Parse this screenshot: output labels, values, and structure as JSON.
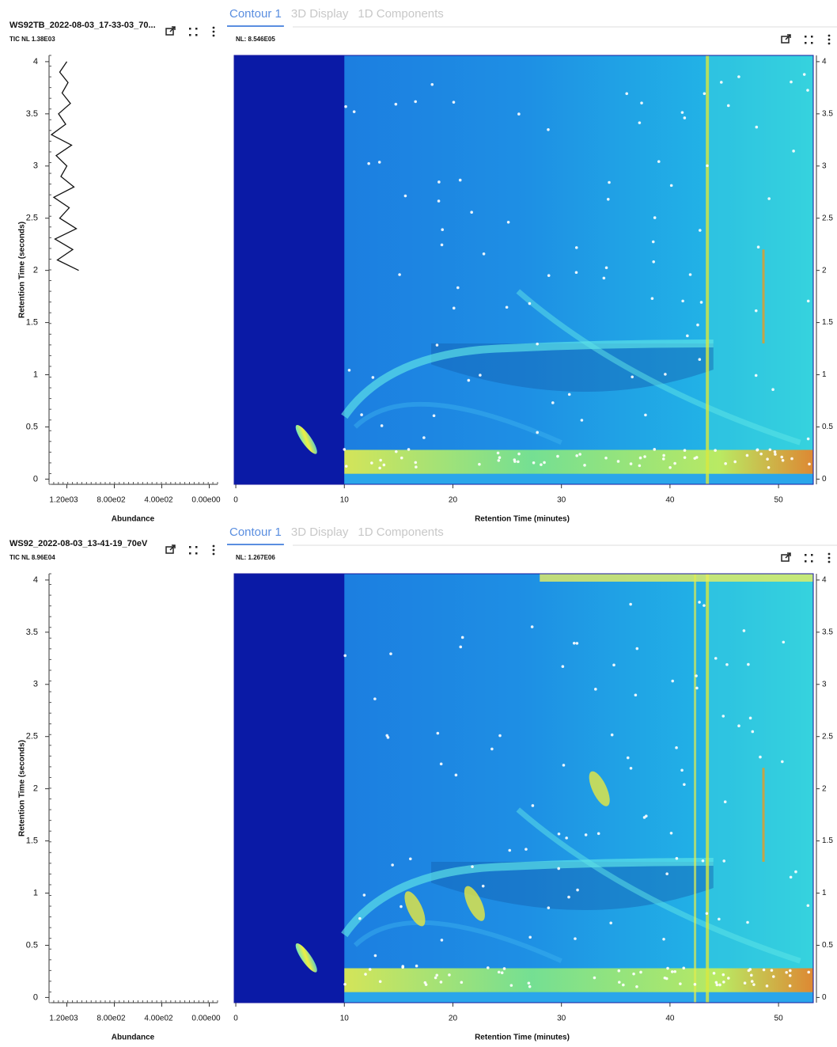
{
  "panels": [
    {
      "title": "WS92TB_2022-08-03_17-33-03_70...",
      "tic_nl": "TIC NL 1.38E03",
      "tabs": [
        "Contour 1",
        "3D Display",
        "1D Components"
      ],
      "nl": "NL: 8.546E05",
      "tic_chart": {
        "type": "line",
        "xlabel": "Abundance",
        "ylabel": "Retention Time (seconds)",
        "xlim": [
          1350,
          -70
        ],
        "xticks": [
          {
            "value": 1200,
            "label": "1.20e03"
          },
          {
            "value": 800,
            "label": "8.00e02"
          },
          {
            "value": 400,
            "label": "4.00e02"
          },
          {
            "value": 0,
            "label": "0.00e00"
          }
        ],
        "ylim": [
          -0.05,
          4.06
        ],
        "yticks": [
          0,
          0.5,
          1,
          1.5,
          2,
          2.5,
          3,
          3.5,
          4
        ],
        "x": [
          2.0,
          2.1,
          2.2,
          2.3,
          2.4,
          2.5,
          2.6,
          2.7,
          2.8,
          2.9,
          3.0,
          3.1,
          3.2,
          3.3,
          3.4,
          3.5,
          3.6,
          3.7,
          3.8,
          3.9,
          4.0
        ],
        "values": [
          1100,
          1280,
          1150,
          1300,
          1120,
          1260,
          1180,
          1310,
          1140,
          1250,
          1200,
          1290,
          1160,
          1330,
          1210,
          1270,
          1170,
          1240,
          1190,
          1260,
          1200
        ]
      },
      "contour_chart": {
        "type": "contour",
        "xlabel": "Retention Time (minutes)",
        "xlim": [
          -0.15,
          53.2
        ],
        "xticks": [
          0,
          10,
          20,
          30,
          40,
          50
        ],
        "ylim": [
          -0.05,
          4.06
        ],
        "yticks": [
          0,
          0.5,
          1,
          1.5,
          2,
          2.5,
          3,
          3.5,
          4
        ]
      }
    },
    {
      "title": "WS92_2022-08-03_13-41-19_70eV",
      "tic_nl": "TIC NL 8.96E04",
      "tabs": [
        "Contour 1",
        "3D Display",
        "1D Components"
      ],
      "nl": "NL: 1.267E06",
      "tic_chart": {
        "type": "line",
        "xlabel": "Abundance",
        "ylabel": "Retention Time (seconds)",
        "xlim": [
          1350,
          -70
        ],
        "xticks": [
          {
            "value": 1200,
            "label": "1.20e03"
          },
          {
            "value": 800,
            "label": "8.00e02"
          },
          {
            "value": 400,
            "label": "4.00e02"
          },
          {
            "value": 0,
            "label": "0.00e00"
          }
        ],
        "ylim": [
          -0.05,
          4.06
        ],
        "yticks": [
          0,
          0.5,
          1,
          1.5,
          2,
          2.5,
          3,
          3.5,
          4
        ]
      },
      "contour_chart": {
        "type": "contour",
        "xlabel": "Retention Time (minutes)",
        "xlim": [
          -0.15,
          53.2
        ],
        "xticks": [
          0,
          10,
          20,
          30,
          40,
          50
        ],
        "ylim": [
          -0.05,
          4.06
        ],
        "yticks": [
          0,
          0.5,
          1,
          1.5,
          2,
          2.5,
          3,
          3.5,
          4
        ]
      }
    }
  ]
}
